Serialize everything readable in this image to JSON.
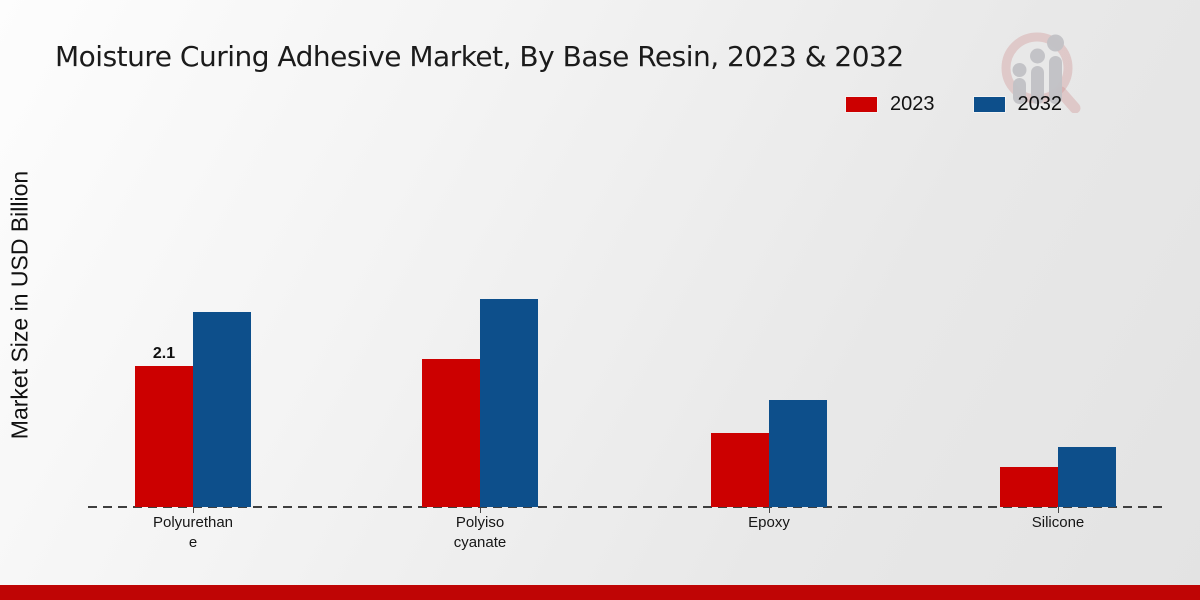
{
  "header": {
    "title": "Moisture Curing Adhesive Market, By Base Resin, 2023 & 2032"
  },
  "legend": {
    "items": [
      {
        "label": "2023",
        "color": "#cc0000"
      },
      {
        "label": "2032",
        "color": "#0d4f8b"
      }
    ]
  },
  "chart_data": {
    "type": "bar",
    "title": "Moisture Curing Adhesive Market, By Base Resin, 2023 & 2032",
    "xlabel": "",
    "ylabel": "Market Size in USD Billion",
    "categories": [
      "Polyurethane",
      "Polyisocyanate",
      "Epoxy",
      "Silicone"
    ],
    "category_display_lines": [
      [
        "Polyurethan",
        "e"
      ],
      [
        "Polyiso",
        "cyanate"
      ],
      [
        "Epoxy"
      ],
      [
        "Silicone"
      ]
    ],
    "series": [
      {
        "name": "2023",
        "color": "#cc0000",
        "values": [
          2.1,
          2.2,
          1.1,
          0.6
        ]
      },
      {
        "name": "2032",
        "color": "#0d4f8b",
        "values": [
          2.9,
          3.1,
          1.6,
          0.9
        ]
      }
    ],
    "value_labels": [
      {
        "series": "2023",
        "category": "Polyurethane",
        "text": "2.1"
      }
    ],
    "ylim": [
      0,
      3.5
    ],
    "yticks_visible": false,
    "grid": false,
    "legend_position": "top-right",
    "baseline_style": "dashed"
  },
  "branding": {
    "logo_icon": "magnifier-growth-chart-logo",
    "footer_bar_color": "#bf0505"
  }
}
